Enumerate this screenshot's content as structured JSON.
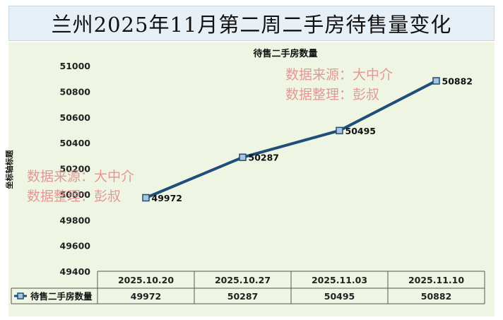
{
  "title": "兰州2025年11月第二周二手房待售量变化",
  "watermark": {
    "line1": "数据来源：大中介",
    "line2": "数据整理：彭叔"
  },
  "chart_data": {
    "type": "line",
    "title": "待售二手房数量",
    "xlabel": "",
    "ylabel": "坐标轴标题",
    "categories": [
      "2025.10.20",
      "2025.10.27",
      "2025.11.03",
      "2025.11.10"
    ],
    "series": [
      {
        "name": "待售二手房数量",
        "values": [
          49972,
          50287,
          50495,
          50882
        ],
        "color": "#1f4e79"
      }
    ],
    "ylim": [
      49400,
      51000
    ],
    "yticks": [
      49400,
      49600,
      49800,
      50000,
      50200,
      50400,
      50600,
      50800,
      51000
    ],
    "grid": false,
    "legend": "data-table-left",
    "data_labels": [
      "49972",
      "50287",
      "50495",
      "50882"
    ],
    "background": "#eef5e2"
  }
}
